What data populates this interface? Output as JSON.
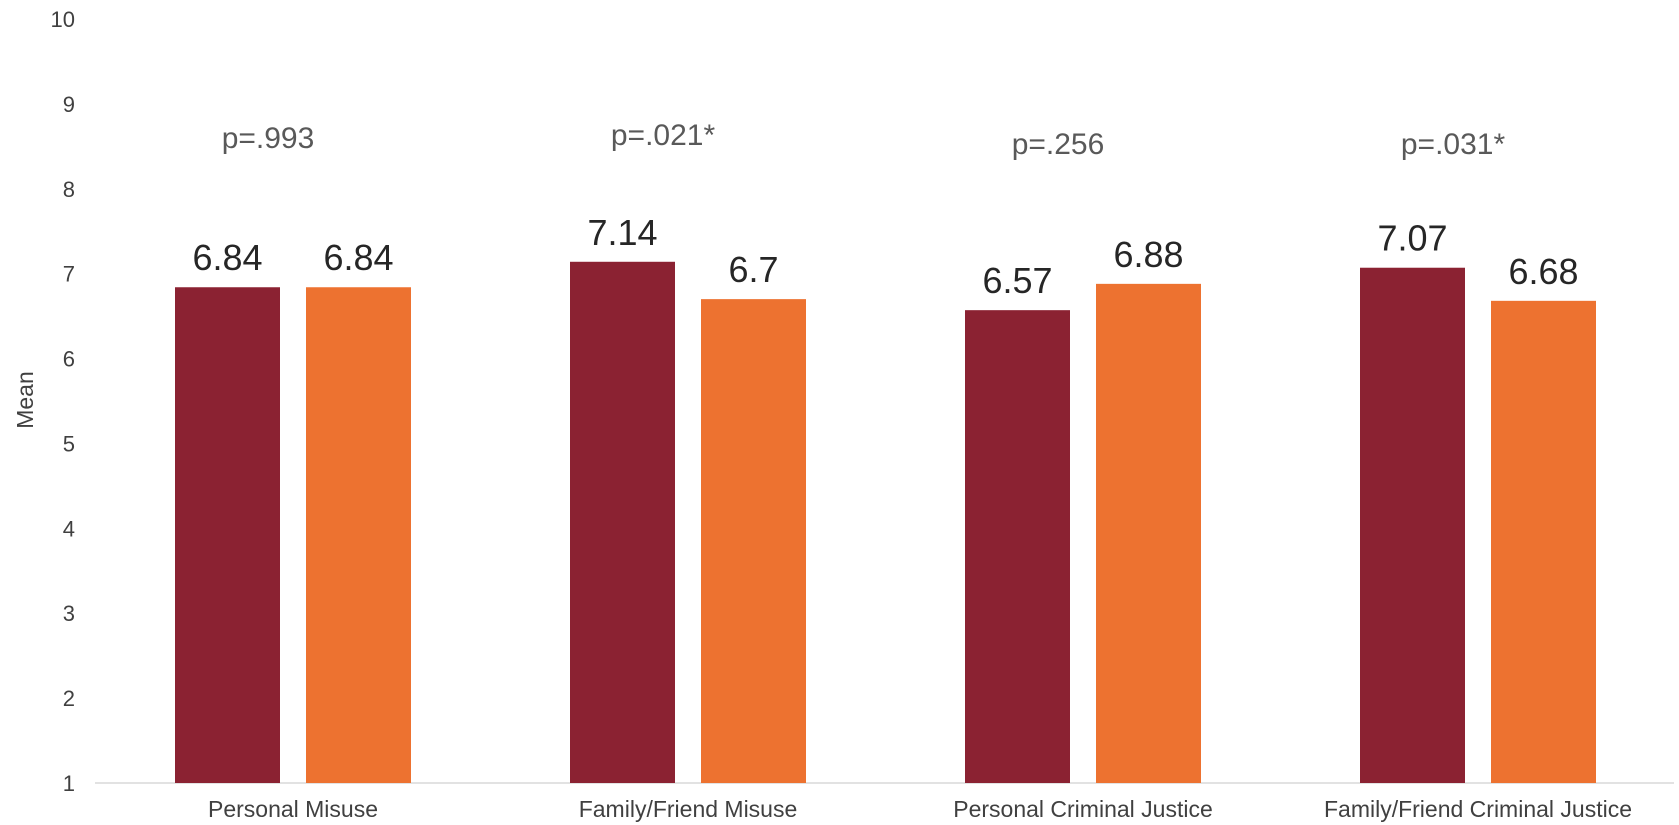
{
  "chart_data": {
    "type": "bar",
    "title": "",
    "xlabel": "",
    "ylabel": "Mean",
    "ylim": [
      1,
      10
    ],
    "yticks": [
      1,
      2,
      3,
      4,
      5,
      6,
      7,
      8,
      9,
      10
    ],
    "grid": false,
    "legend": "none",
    "categories": [
      "Personal Misuse",
      "Family/Friend Misuse",
      "Personal Criminal Justice",
      "Family/Friend Criminal Justice"
    ],
    "series": [
      {
        "values": [
          6.84,
          7.14,
          6.57,
          7.07
        ],
        "data_labels": [
          "6.84",
          "7.14",
          "6.57",
          "7.07"
        ],
        "color": "#8B2232"
      },
      {
        "values": [
          6.84,
          6.7,
          6.88,
          6.68
        ],
        "data_labels": [
          "6.84",
          "6.7",
          "6.88",
          "6.68"
        ],
        "color": "#ED7230"
      }
    ],
    "annotations": [
      "p=.993",
      "p=.021*",
      "p=.256",
      "p=.031*"
    ]
  }
}
